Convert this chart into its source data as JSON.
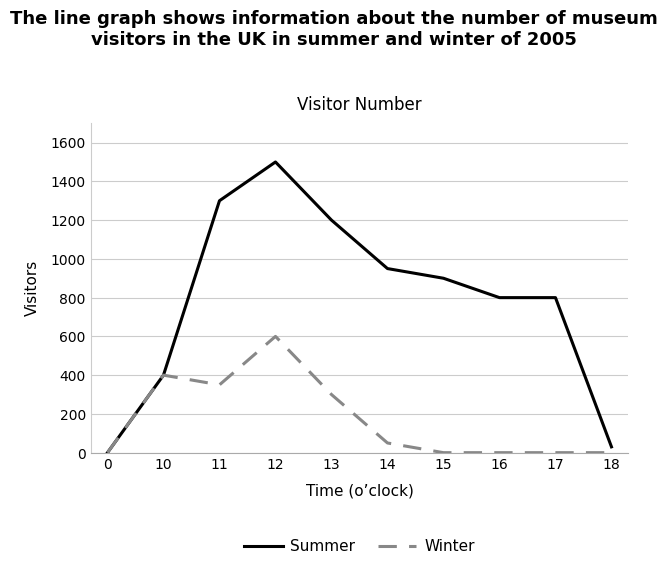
{
  "title": "The line graph shows information about the number of museum\nvisitors in the UK in summer and winter of 2005",
  "subtitle": "Visitor Number",
  "xlabel": "Time (o’clock)",
  "ylabel": "Visitors",
  "x_labels": [
    "0",
    "10",
    "11",
    "12",
    "13",
    "14",
    "15",
    "16",
    "17",
    "18"
  ],
  "summer_y": [
    0,
    400,
    1300,
    1500,
    1200,
    950,
    900,
    800,
    800,
    30
  ],
  "winter_y": [
    0,
    400,
    350,
    600,
    300,
    50,
    0,
    0,
    0,
    0
  ],
  "summer_color": "#000000",
  "winter_color": "#888888",
  "bg_color": "#ffffff",
  "ylim": [
    0,
    1700
  ],
  "yticks": [
    0,
    200,
    400,
    600,
    800,
    1000,
    1200,
    1400,
    1600
  ],
  "title_fontsize": 13,
  "subtitle_fontsize": 12,
  "axis_label_fontsize": 11,
  "tick_fontsize": 10,
  "legend_fontsize": 11,
  "summer_linewidth": 2.2,
  "winter_linewidth": 2.2,
  "grid_color": "#cccccc",
  "grid_linewidth": 0.8
}
